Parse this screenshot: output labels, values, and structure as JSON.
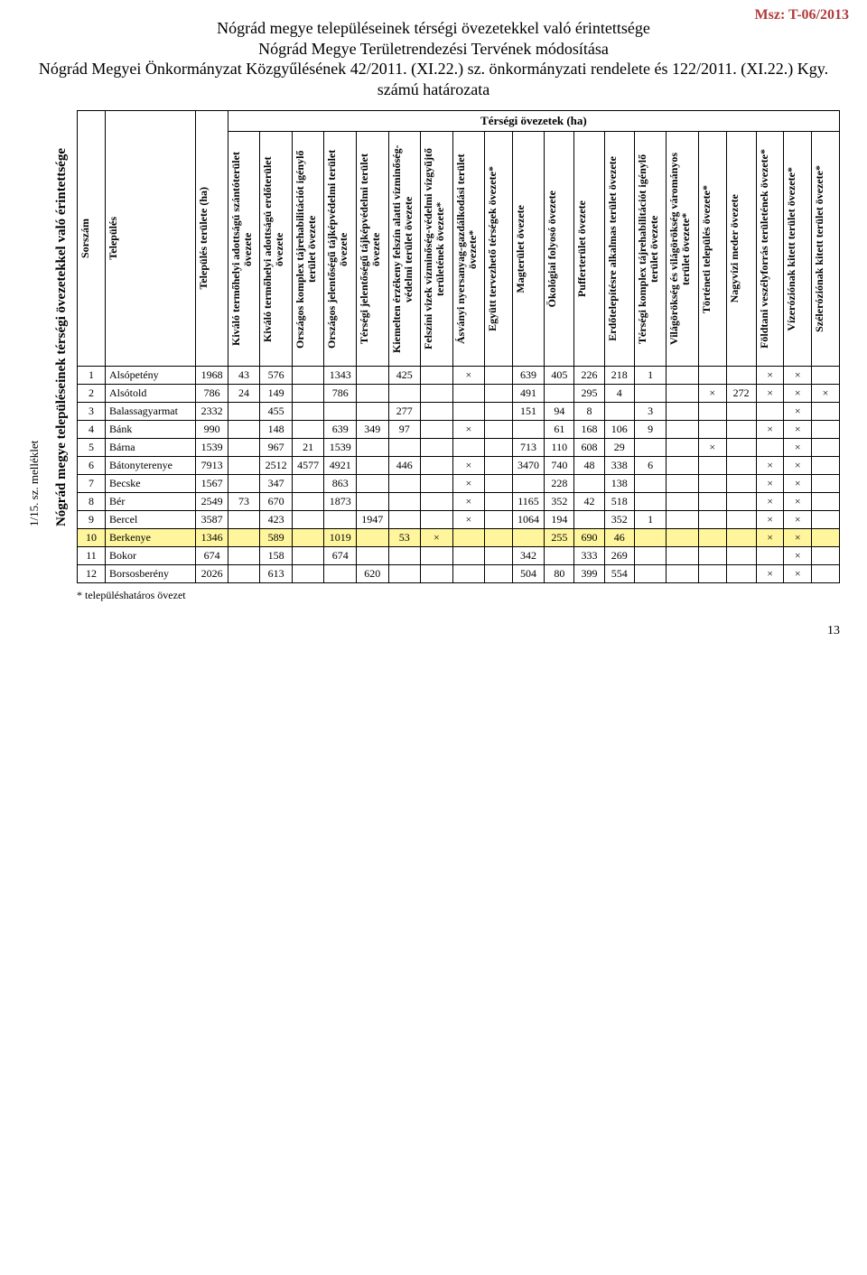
{
  "doc_id": "Msz: T-06/2013",
  "header": {
    "line1": "Nógrád megye településeinek térségi övezetekkel való érintettsége",
    "line2": "Nógrád Megye Területrendezési Tervének módosítása",
    "line3": "Nógrád Megyei Önkormányzat Közgyűlésének 42/2011. (XI.22.) sz. önkormányzati rendelete és 122/2011. (XI.22.) Kgy. számú határozata"
  },
  "side": {
    "appendix": "1/15. sz. melléklet",
    "main_title": "Nógrád megye településeinek térségi övezetekkel való érintettsége",
    "group_title": "Térségi övezetek (ha)"
  },
  "columns": [
    "Sorszám",
    "Település",
    "Település területe (ha)",
    "Kiváló termőhelyi adottságú szántóterület övezete",
    "Kiváló termőhelyi adottságú erdőterület övezete",
    "Országos komplex tájrehabilitációt igénylő terület övezete",
    "Országos jelentőségű tájképvédelmi terület övezete",
    "Térségi jelentőségű tájképvédelmi terület övezete",
    "Kiemelten érzékeny felszín alatti vízminőség-védelmi terület övezete",
    "Felszíni vizek vízminőség-védelmi vízgyűjtő területének övezete*",
    "Ásványi nyersanyag-gazdálkodási terület övezete*",
    "Együtt tervezhető térségek övezete*",
    "Magterület övezete",
    "Ökológiai folyosó övezete",
    "Pufferterület övezete",
    "Erdőtelepítésre alkalmas terület övezete",
    "Térségi komplex tájrehabilitációt igénylő terület övezete",
    "Világörökség és világörökség várományos terület övezete*",
    "Történeti település övezete*",
    "Nagyvízi meder övezete",
    "Földtani veszélyforrás területének övezete*",
    "Vízeróziónak kitett terület övezete*",
    "Széleróziónak kitett terület övezete*"
  ],
  "rows": [
    {
      "hl": false,
      "c": [
        "1",
        "Alsópetény",
        "1968",
        "43",
        "576",
        "",
        "1343",
        "",
        "425",
        "",
        "×",
        "",
        "639",
        "405",
        "226",
        "218",
        "1",
        "",
        "",
        "",
        "×",
        "×",
        ""
      ]
    },
    {
      "hl": false,
      "c": [
        "2",
        "Alsótold",
        "786",
        "24",
        "149",
        "",
        "786",
        "",
        "",
        "",
        "",
        "",
        "491",
        "",
        "295",
        "4",
        "",
        "",
        "×",
        "272",
        "×",
        "×",
        "×"
      ]
    },
    {
      "hl": false,
      "c": [
        "3",
        "Balassagyarmat",
        "2332",
        "",
        "455",
        "",
        "",
        "",
        "277",
        "",
        "",
        "",
        "151",
        "94",
        "8",
        "",
        "3",
        "",
        "",
        "",
        "",
        "×",
        ""
      ]
    },
    {
      "hl": false,
      "c": [
        "4",
        "Bánk",
        "990",
        "",
        "148",
        "",
        "639",
        "349",
        "97",
        "",
        "×",
        "",
        "",
        "61",
        "168",
        "106",
        "9",
        "",
        "",
        "",
        "×",
        "×",
        ""
      ]
    },
    {
      "hl": false,
      "c": [
        "5",
        "Bárna",
        "1539",
        "",
        "967",
        "21",
        "1539",
        "",
        "",
        "",
        "",
        "",
        "713",
        "110",
        "608",
        "29",
        "",
        "",
        "×",
        "",
        "",
        "×",
        ""
      ]
    },
    {
      "hl": false,
      "c": [
        "6",
        "Bátonyterenye",
        "7913",
        "",
        "2512",
        "4577",
        "4921",
        "",
        "446",
        "",
        "×",
        "",
        "3470",
        "740",
        "48",
        "338",
        "6",
        "",
        "",
        "",
        "×",
        "×",
        ""
      ]
    },
    {
      "hl": false,
      "c": [
        "7",
        "Becske",
        "1567",
        "",
        "347",
        "",
        "863",
        "",
        "",
        "",
        "×",
        "",
        "",
        "228",
        "",
        "138",
        "",
        "",
        "",
        "",
        "×",
        "×",
        ""
      ]
    },
    {
      "hl": false,
      "c": [
        "8",
        "Bér",
        "2549",
        "73",
        "670",
        "",
        "1873",
        "",
        "",
        "",
        "×",
        "",
        "1165",
        "352",
        "42",
        "518",
        "",
        "",
        "",
        "",
        "×",
        "×",
        ""
      ]
    },
    {
      "hl": false,
      "c": [
        "9",
        "Bercel",
        "3587",
        "",
        "423",
        "",
        "",
        "1947",
        "",
        "",
        "×",
        "",
        "1064",
        "194",
        "",
        "352",
        "1",
        "",
        "",
        "",
        "×",
        "×",
        ""
      ]
    },
    {
      "hl": true,
      "c": [
        "10",
        "Berkenye",
        "1346",
        "",
        "589",
        "",
        "1019",
        "",
        "53",
        "×",
        "",
        "",
        "",
        "255",
        "690",
        "46",
        "",
        "",
        "",
        "",
        "×",
        "×",
        ""
      ]
    },
    {
      "hl": false,
      "c": [
        "11",
        "Bokor",
        "674",
        "",
        "158",
        "",
        "674",
        "",
        "",
        "",
        "",
        "",
        "342",
        "",
        "333",
        "269",
        "",
        "",
        "",
        "",
        "",
        "×",
        ""
      ]
    },
    {
      "hl": false,
      "c": [
        "12",
        "Borsosberény",
        "2026",
        "",
        "613",
        "",
        "",
        "620",
        "",
        "",
        "",
        "",
        "504",
        "80",
        "399",
        "554",
        "",
        "",
        "",
        "",
        "×",
        "×",
        ""
      ]
    }
  ],
  "footnote": "* településhatáros övezet",
  "page_number": "13",
  "highlight_color": "#fff59d"
}
